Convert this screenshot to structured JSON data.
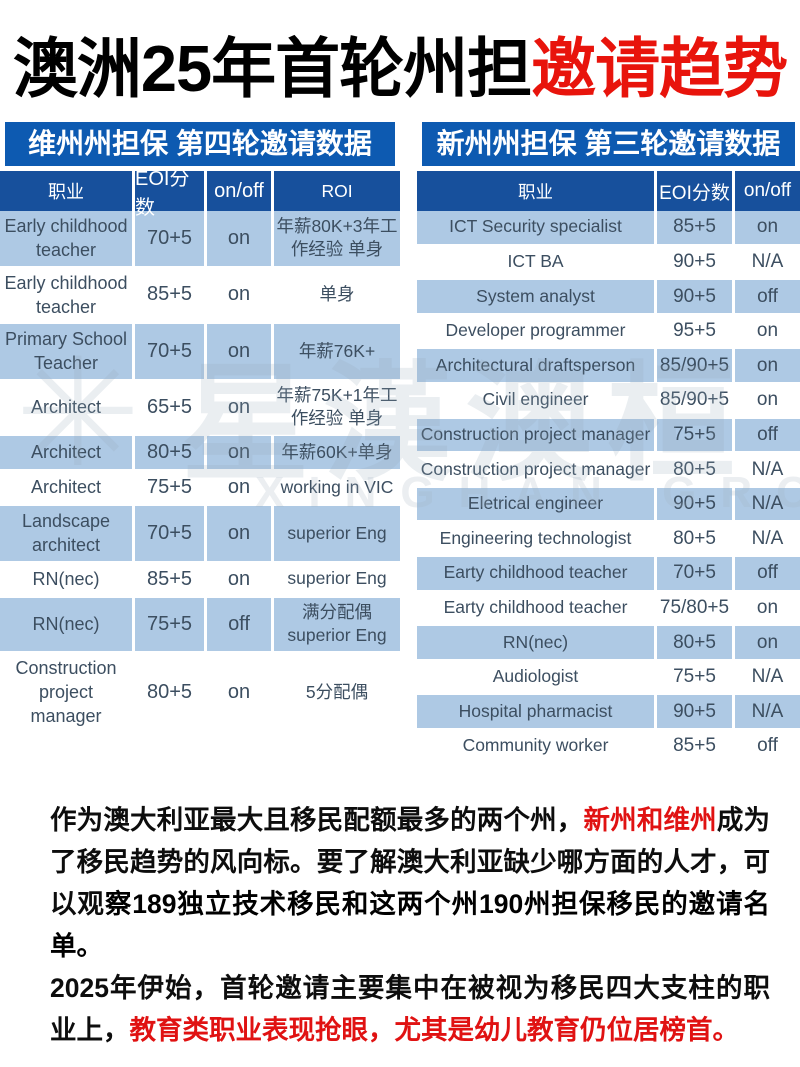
{
  "colors": {
    "band_blue": "#0d5ab1",
    "header_blue": "#17509c",
    "row_shade": "#aec9e4",
    "red": "#e8140c",
    "red_text": "#e01212"
  },
  "page_title": {
    "black_part": "澳洲25年首轮州担",
    "red_part": "邀请趋势"
  },
  "vic_table": {
    "title": "维州州担保 第四轮邀请数据",
    "headers": {
      "occupation": "职业",
      "eoi": "EOI分数",
      "onoff": "on/off",
      "roi": "ROI"
    },
    "rows": [
      {
        "occupation": "Early childhood teacher",
        "eoi": "70+5",
        "onoff": "on",
        "roi": "年薪80K+3年工作经验 单身"
      },
      {
        "occupation": "Early childhood teacher",
        "eoi": "85+5",
        "onoff": "on",
        "roi": "单身"
      },
      {
        "occupation": "Primary School Teacher",
        "eoi": "70+5",
        "onoff": "on",
        "roi": "年薪76K+"
      },
      {
        "occupation": "Architect",
        "eoi": "65+5",
        "onoff": "on",
        "roi": "年薪75K+1年工作经验 单身"
      },
      {
        "occupation": "Architect",
        "eoi": "80+5",
        "onoff": "on",
        "roi": "年薪60K+单身"
      },
      {
        "occupation": "Architect",
        "eoi": "75+5",
        "onoff": "on",
        "roi": "working in VIC"
      },
      {
        "occupation": "Landscape architect",
        "eoi": "70+5",
        "onoff": "on",
        "roi": "superior Eng"
      },
      {
        "occupation": "RN(nec)",
        "eoi": "85+5",
        "onoff": "on",
        "roi": "superior Eng"
      },
      {
        "occupation": "RN(nec)",
        "eoi": "75+5",
        "onoff": "off",
        "roi": "满分配偶 superior Eng"
      },
      {
        "occupation": "Construction project manager",
        "eoi": "80+5",
        "onoff": "on",
        "roi": "5分配偶"
      }
    ]
  },
  "nsw_table": {
    "title": "新州州担保 第三轮邀请数据",
    "headers": {
      "occupation": "职业",
      "eoi": "EOI分数",
      "onoff": "on/off"
    },
    "rows": [
      {
        "occupation": "ICT Security specialist",
        "eoi": "85+5",
        "onoff": "on"
      },
      {
        "occupation": "ICT BA",
        "eoi": "90+5",
        "onoff": "N/A"
      },
      {
        "occupation": "System analyst",
        "eoi": "90+5",
        "onoff": "off"
      },
      {
        "occupation": "Developer programmer",
        "eoi": "95+5",
        "onoff": "on"
      },
      {
        "occupation": "Architectural draftsperson",
        "eoi": "85/90+5",
        "onoff": "on"
      },
      {
        "occupation": "Civil engineer",
        "eoi": "85/90+5",
        "onoff": "on"
      },
      {
        "occupation": "Construction project manager",
        "eoi": "75+5",
        "onoff": "off"
      },
      {
        "occupation": "Construction project manager",
        "eoi": "80+5",
        "onoff": "N/A"
      },
      {
        "occupation": "Eletrical engineer",
        "eoi": "90+5",
        "onoff": "N/A"
      },
      {
        "occupation": "Engineering technologist",
        "eoi": "80+5",
        "onoff": "N/A"
      },
      {
        "occupation": "Earty childhood teacher",
        "eoi": "70+5",
        "onoff": "off"
      },
      {
        "occupation": "Earty childhood teacher",
        "eoi": "75/80+5",
        "onoff": "on"
      },
      {
        "occupation": "RN(nec)",
        "eoi": "80+5",
        "onoff": "on"
      },
      {
        "occupation": "Audiologist",
        "eoi": "75+5",
        "onoff": "N/A"
      },
      {
        "occupation": "Hospital pharmacist",
        "eoi": "90+5",
        "onoff": "N/A"
      },
      {
        "occupation": "Community worker",
        "eoi": "85+5",
        "onoff": "off"
      }
    ]
  },
  "watermark": {
    "logo_glyph": "✳",
    "text": "星漢澳桓",
    "subtext": "XINGHAN GROUP"
  },
  "paragraph": {
    "segments": [
      {
        "text": "作为澳大利亚最大且移民配额最多的两个州，",
        "style": "normal"
      },
      {
        "text": "新州和维州",
        "style": "red-bold"
      },
      {
        "text": "成为了移民趋势的风向标。要了解澳大利亚缺少哪方面的人才，可以观",
        "style": "normal"
      },
      {
        "text": "察189独立技术移民和这两个州190州担保移民的邀请名单。",
        "style": "bold",
        "br": true
      },
      {
        "text": "2025年伊始，首轮邀请主要集中在被视为移民四大支柱的职业上，",
        "style": "normal"
      },
      {
        "text": "教育类职业表现抢眼，尤其是幼儿教育仍位居榜首。",
        "style": "red"
      }
    ]
  }
}
